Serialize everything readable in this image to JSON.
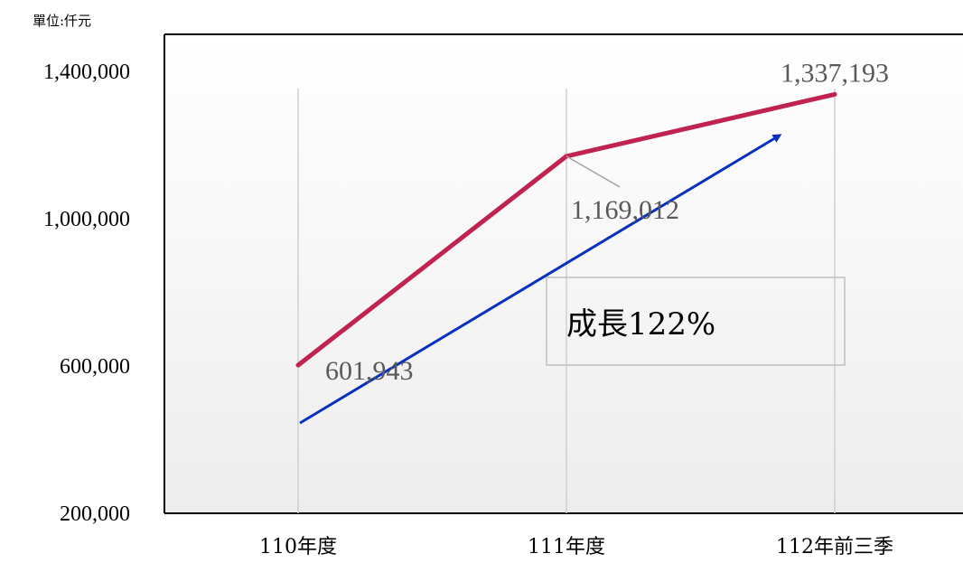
{
  "chart_data": {
    "type": "line",
    "unit_label": "單位:仟元",
    "categories": [
      "110年度",
      "111年度",
      "112年前三季"
    ],
    "series": [
      {
        "values": [
          601943,
          1169012,
          1337193
        ],
        "color": "#c0234f"
      }
    ],
    "data_labels": [
      "601,943",
      "1,169,012",
      "1,337,193"
    ],
    "y_ticks": [
      200000,
      600000,
      1000000,
      1400000
    ],
    "y_tick_labels": [
      "200,000",
      "600,000",
      "1,000,000",
      "1,400,000"
    ],
    "ylim": [
      200000,
      1500000
    ],
    "trend_arrow_color": "#0b2fbf",
    "annotation": "成長122%"
  }
}
